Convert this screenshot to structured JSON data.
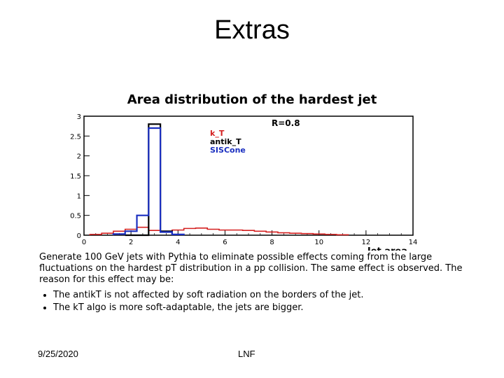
{
  "slide": {
    "title": "Extras",
    "footer_date": "9/25/2020",
    "footer_org": "LNF"
  },
  "chart_data": {
    "type": "line",
    "title": "Area distribution of the hardest jet",
    "xlabel": "Jet area",
    "ylabel": "",
    "xlim": [
      0,
      14
    ],
    "ylim": [
      0,
      3
    ],
    "x_ticks": [
      0,
      2,
      4,
      6,
      8,
      10,
      12,
      14
    ],
    "y_ticks": [
      0,
      0.5,
      1,
      1.5,
      2,
      2.5,
      3
    ],
    "y_tick_labels": [
      "0",
      "0.5",
      "1",
      "1.5",
      "2",
      "2.5",
      "3"
    ],
    "annotations": {
      "radius": "R=0.8"
    },
    "legend_position": "top-right",
    "bin_width": 0.5,
    "series": [
      {
        "name": "k_T",
        "color": "#d42020",
        "style": "solid",
        "x": [
          0.5,
          1.0,
          1.5,
          2.0,
          2.5,
          3.0,
          3.5,
          4.0,
          4.5,
          5.0,
          5.5,
          6.0,
          6.5,
          7.0,
          7.5,
          8.0,
          8.5,
          9.0,
          9.5,
          10.0,
          10.5,
          11.0
        ],
        "values": [
          0.02,
          0.05,
          0.1,
          0.15,
          0.2,
          0.12,
          0.1,
          0.13,
          0.17,
          0.18,
          0.15,
          0.13,
          0.13,
          0.12,
          0.1,
          0.08,
          0.06,
          0.05,
          0.04,
          0.03,
          0.02,
          0.01
        ]
      },
      {
        "name": "antik_T",
        "color": "#000000",
        "style": "solid",
        "x": [
          2.0,
          2.5,
          3.0,
          3.5
        ],
        "values": [
          0.0,
          0.0,
          2.8,
          0.1
        ]
      },
      {
        "name": "SISCone",
        "color": "#1a2fc0",
        "style": "solid",
        "x": [
          1.5,
          2.0,
          2.5,
          3.0,
          3.5,
          4.0
        ],
        "values": [
          0.03,
          0.1,
          0.5,
          2.7,
          0.08,
          0.02
        ]
      }
    ]
  },
  "caption": {
    "text": "Generate 100 GeV jets with Pythia to eliminate possible effects coming from the large fluctuations on the hardest pT distribution in a pp collision. The same effect is observed. The reason for this effect may be:",
    "bullets": [
      "The antikT is not affected by soft radiation on the borders of the jet.",
      "The kT algo is more soft-adaptable, the jets are bigger."
    ]
  }
}
